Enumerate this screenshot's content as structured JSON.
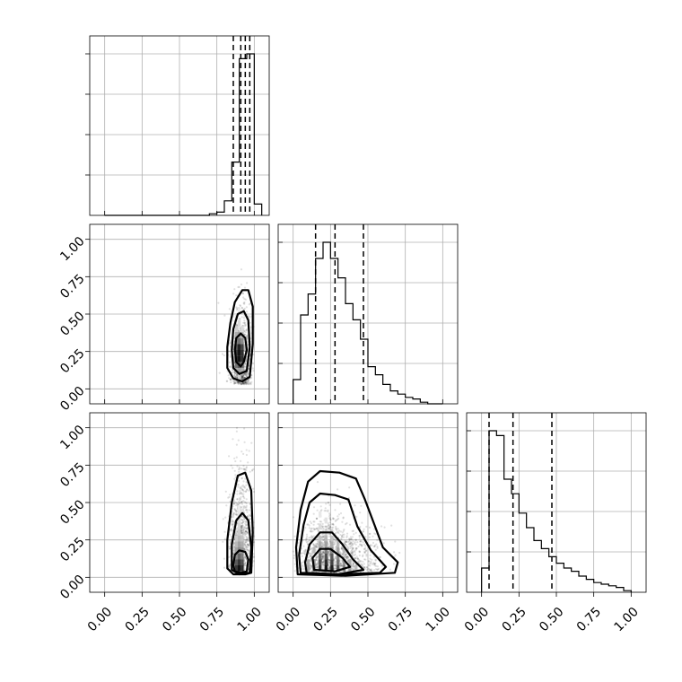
{
  "chart_data": {
    "type": "corner",
    "grid": true,
    "params": [
      {
        "range": [
          -0.1,
          1.1
        ]
      },
      {
        "range": [
          -0.1,
          1.1
        ]
      },
      {
        "range": [
          -0.1,
          1.1
        ]
      }
    ],
    "tick_values": [
      0.0,
      0.25,
      0.5,
      0.75,
      1.0
    ],
    "tick_labels": [
      "0.00",
      "0.25",
      "0.50",
      "0.75",
      "1.00"
    ],
    "histograms": [
      {
        "bin_edges": [
          0.0,
          0.05,
          0.1,
          0.15,
          0.2,
          0.25,
          0.3,
          0.35,
          0.4,
          0.45,
          0.5,
          0.55,
          0.6,
          0.65,
          0.7,
          0.75,
          0.8,
          0.85,
          0.9,
          0.95,
          1.0,
          1.05
        ],
        "counts": [
          0,
          0,
          0,
          0,
          0,
          0,
          0,
          0,
          0,
          0,
          0,
          0,
          0,
          0,
          0.01,
          0.02,
          0.09,
          0.33,
          0.97,
          1.0,
          0.07
        ],
        "quantiles": [
          0.86,
          0.91,
          0.94,
          0.97
        ]
      },
      {
        "bin_edges": [
          0.0,
          0.05,
          0.1,
          0.15,
          0.2,
          0.25,
          0.3,
          0.35,
          0.4,
          0.45,
          0.5,
          0.55,
          0.6,
          0.65,
          0.7,
          0.75,
          0.8,
          0.85,
          0.9,
          0.95,
          1.0
        ],
        "counts": [
          0.15,
          0.55,
          0.68,
          0.9,
          1.0,
          0.9,
          0.78,
          0.62,
          0.52,
          0.4,
          0.23,
          0.18,
          0.12,
          0.08,
          0.06,
          0.04,
          0.03,
          0.01,
          0.0,
          0.0
        ],
        "quantiles": [
          0.15,
          0.28,
          0.47
        ]
      },
      {
        "bin_edges": [
          0.0,
          0.05,
          0.1,
          0.15,
          0.2,
          0.25,
          0.3,
          0.35,
          0.4,
          0.45,
          0.5,
          0.55,
          0.6,
          0.65,
          0.7,
          0.75,
          0.8,
          0.85,
          0.9,
          0.95,
          1.0
        ],
        "counts": [
          0.15,
          1.0,
          0.97,
          0.7,
          0.61,
          0.49,
          0.4,
          0.32,
          0.27,
          0.22,
          0.18,
          0.15,
          0.13,
          0.1,
          0.08,
          0.06,
          0.05,
          0.04,
          0.03,
          0.01
        ],
        "quantiles": [
          0.05,
          0.21,
          0.47
        ]
      }
    ],
    "density_panels": [
      {
        "x_param": 0,
        "y_param": 1,
        "center": [
          0.91,
          0.26
        ],
        "spread": [
          0.035,
          0.14
        ],
        "cells": [
          [
            0.88,
            0.2,
            0.9
          ],
          [
            0.9,
            0.2,
            1.0
          ],
          [
            0.92,
            0.2,
            0.9
          ],
          [
            0.88,
            0.24,
            0.85
          ],
          [
            0.9,
            0.24,
            1.0
          ],
          [
            0.92,
            0.24,
            0.9
          ],
          [
            0.88,
            0.28,
            0.75
          ],
          [
            0.9,
            0.28,
            0.95
          ],
          [
            0.92,
            0.28,
            0.8
          ],
          [
            0.88,
            0.32,
            0.55
          ],
          [
            0.9,
            0.32,
            0.6
          ],
          [
            0.92,
            0.32,
            0.5
          ],
          [
            0.88,
            0.16,
            0.6
          ],
          [
            0.9,
            0.16,
            0.7
          ],
          [
            0.92,
            0.16,
            0.6
          ],
          [
            0.88,
            0.12,
            0.35
          ],
          [
            0.9,
            0.12,
            0.4
          ],
          [
            0.92,
            0.12,
            0.35
          ],
          [
            0.88,
            0.36,
            0.35
          ],
          [
            0.9,
            0.36,
            0.4
          ],
          [
            0.92,
            0.36,
            0.3
          ],
          [
            0.86,
            0.28,
            0.3
          ],
          [
            0.94,
            0.28,
            0.3
          ],
          [
            0.86,
            0.2,
            0.35
          ],
          [
            0.94,
            0.2,
            0.35
          ],
          [
            0.88,
            0.4,
            0.2
          ],
          [
            0.9,
            0.44,
            0.15
          ],
          [
            0.92,
            0.4,
            0.15
          ],
          [
            0.9,
            0.08,
            0.2
          ],
          [
            0.88,
            0.48,
            0.1
          ],
          [
            0.9,
            0.52,
            0.08
          ]
        ],
        "contours": [
          [
            [
              0.93,
              0.18
            ],
            [
              0.95,
              0.26
            ],
            [
              0.94,
              0.34
            ],
            [
              0.91,
              0.37
            ],
            [
              0.88,
              0.34
            ],
            [
              0.87,
              0.26
            ],
            [
              0.88,
              0.18
            ],
            [
              0.91,
              0.15
            ]
          ],
          [
            [
              0.95,
              0.12
            ],
            [
              0.97,
              0.28
            ],
            [
              0.96,
              0.46
            ],
            [
              0.93,
              0.52
            ],
            [
              0.89,
              0.5
            ],
            [
              0.86,
              0.4
            ],
            [
              0.85,
              0.26
            ],
            [
              0.86,
              0.14
            ],
            [
              0.9,
              0.1
            ]
          ],
          [
            [
              0.97,
              0.08
            ],
            [
              0.99,
              0.3
            ],
            [
              0.99,
              0.55
            ],
            [
              0.96,
              0.66
            ],
            [
              0.92,
              0.66
            ],
            [
              0.87,
              0.58
            ],
            [
              0.84,
              0.44
            ],
            [
              0.82,
              0.28
            ],
            [
              0.82,
              0.14
            ],
            [
              0.86,
              0.07
            ],
            [
              0.92,
              0.05
            ]
          ]
        ]
      },
      {
        "x_param": 0,
        "y_param": 2,
        "center": [
          0.91,
          0.2
        ],
        "spread": [
          0.04,
          0.2
        ],
        "cells": [
          [
            0.9,
            0.06,
            1.0
          ],
          [
            0.92,
            0.06,
            0.9
          ],
          [
            0.88,
            0.06,
            0.85
          ],
          [
            0.9,
            0.1,
            0.85
          ],
          [
            0.92,
            0.1,
            0.75
          ],
          [
            0.88,
            0.1,
            0.7
          ],
          [
            0.9,
            0.14,
            0.65
          ],
          [
            0.92,
            0.14,
            0.55
          ],
          [
            0.88,
            0.14,
            0.5
          ],
          [
            0.9,
            0.18,
            0.5
          ],
          [
            0.92,
            0.18,
            0.45
          ],
          [
            0.88,
            0.18,
            0.4
          ],
          [
            0.9,
            0.22,
            0.4
          ],
          [
            0.92,
            0.22,
            0.35
          ],
          [
            0.88,
            0.22,
            0.3
          ],
          [
            0.9,
            0.26,
            0.3
          ],
          [
            0.92,
            0.26,
            0.25
          ],
          [
            0.88,
            0.26,
            0.22
          ],
          [
            0.9,
            0.3,
            0.22
          ],
          [
            0.9,
            0.34,
            0.18
          ],
          [
            0.9,
            0.38,
            0.14
          ],
          [
            0.9,
            0.42,
            0.1
          ],
          [
            0.9,
            0.46,
            0.08
          ]
        ],
        "contours": [
          [
            [
              0.95,
              0.04
            ],
            [
              0.96,
              0.12
            ],
            [
              0.94,
              0.17
            ],
            [
              0.9,
              0.18
            ],
            [
              0.87,
              0.15
            ],
            [
              0.86,
              0.08
            ],
            [
              0.87,
              0.04
            ],
            [
              0.91,
              0.03
            ]
          ],
          [
            [
              0.97,
              0.03
            ],
            [
              0.98,
              0.2
            ],
            [
              0.96,
              0.38
            ],
            [
              0.92,
              0.43
            ],
            [
              0.88,
              0.38
            ],
            [
              0.85,
              0.22
            ],
            [
              0.85,
              0.05
            ],
            [
              0.9,
              0.02
            ]
          ],
          [
            [
              0.98,
              0.03
            ],
            [
              0.99,
              0.3
            ],
            [
              0.98,
              0.58
            ],
            [
              0.94,
              0.7
            ],
            [
              0.89,
              0.68
            ],
            [
              0.85,
              0.5
            ],
            [
              0.82,
              0.25
            ],
            [
              0.82,
              0.06
            ],
            [
              0.86,
              0.02
            ],
            [
              0.94,
              0.02
            ]
          ]
        ]
      },
      {
        "x_param": 1,
        "y_param": 2,
        "center": [
          0.25,
          0.15
        ],
        "spread": [
          0.17,
          0.17
        ],
        "cells": [
          [
            0.22,
            0.06,
            1.0
          ],
          [
            0.26,
            0.06,
            0.95
          ],
          [
            0.18,
            0.06,
            0.85
          ],
          [
            0.3,
            0.06,
            0.75
          ],
          [
            0.22,
            0.1,
            0.9
          ],
          [
            0.26,
            0.1,
            0.8
          ],
          [
            0.18,
            0.1,
            0.75
          ],
          [
            0.3,
            0.1,
            0.6
          ],
          [
            0.22,
            0.14,
            0.75
          ],
          [
            0.26,
            0.14,
            0.7
          ],
          [
            0.18,
            0.14,
            0.6
          ],
          [
            0.3,
            0.14,
            0.5
          ],
          [
            0.14,
            0.06,
            0.6
          ],
          [
            0.34,
            0.06,
            0.55
          ],
          [
            0.14,
            0.1,
            0.5
          ],
          [
            0.34,
            0.1,
            0.45
          ],
          [
            0.22,
            0.18,
            0.55
          ],
          [
            0.26,
            0.18,
            0.5
          ],
          [
            0.18,
            0.18,
            0.45
          ],
          [
            0.3,
            0.18,
            0.4
          ],
          [
            0.22,
            0.22,
            0.4
          ],
          [
            0.26,
            0.22,
            0.35
          ],
          [
            0.18,
            0.22,
            0.35
          ],
          [
            0.3,
            0.22,
            0.3
          ],
          [
            0.22,
            0.26,
            0.3
          ],
          [
            0.26,
            0.26,
            0.25
          ],
          [
            0.18,
            0.26,
            0.25
          ],
          [
            0.38,
            0.06,
            0.4
          ],
          [
            0.38,
            0.1,
            0.35
          ],
          [
            0.1,
            0.06,
            0.4
          ],
          [
            0.1,
            0.1,
            0.35
          ],
          [
            0.42,
            0.06,
            0.28
          ],
          [
            0.46,
            0.06,
            0.2
          ],
          [
            0.14,
            0.18,
            0.3
          ],
          [
            0.34,
            0.18,
            0.3
          ],
          [
            0.22,
            0.3,
            0.2
          ],
          [
            0.18,
            0.34,
            0.15
          ],
          [
            0.22,
            0.38,
            0.12
          ],
          [
            0.18,
            0.42,
            0.1
          ]
        ],
        "contours": [
          [
            [
              0.14,
              0.05
            ],
            [
              0.28,
              0.04
            ],
            [
              0.38,
              0.07
            ],
            [
              0.33,
              0.13
            ],
            [
              0.25,
              0.19
            ],
            [
              0.18,
              0.19
            ],
            [
              0.13,
              0.13
            ]
          ],
          [
            [
              0.09,
              0.03
            ],
            [
              0.3,
              0.02
            ],
            [
              0.47,
              0.05
            ],
            [
              0.4,
              0.12
            ],
            [
              0.33,
              0.22
            ],
            [
              0.26,
              0.3
            ],
            [
              0.18,
              0.3
            ],
            [
              0.11,
              0.22
            ],
            [
              0.08,
              0.1
            ]
          ],
          [
            [
              0.05,
              0.03
            ],
            [
              0.3,
              0.02
            ],
            [
              0.58,
              0.03
            ],
            [
              0.62,
              0.07
            ],
            [
              0.52,
              0.18
            ],
            [
              0.43,
              0.34
            ],
            [
              0.37,
              0.52
            ],
            [
              0.28,
              0.55
            ],
            [
              0.18,
              0.56
            ],
            [
              0.11,
              0.5
            ],
            [
              0.07,
              0.35
            ],
            [
              0.04,
              0.15
            ]
          ],
          [
            [
              0.03,
              0.02
            ],
            [
              0.35,
              0.01
            ],
            [
              0.68,
              0.03
            ],
            [
              0.7,
              0.1
            ],
            [
              0.6,
              0.2
            ],
            [
              0.54,
              0.36
            ],
            [
              0.48,
              0.52
            ],
            [
              0.42,
              0.66
            ],
            [
              0.31,
              0.7
            ],
            [
              0.18,
              0.71
            ],
            [
              0.1,
              0.64
            ],
            [
              0.05,
              0.45
            ],
            [
              0.02,
              0.2
            ]
          ]
        ]
      }
    ],
    "scatter_seed": 7,
    "scatter_counts": [
      900,
      900,
      1300
    ]
  }
}
